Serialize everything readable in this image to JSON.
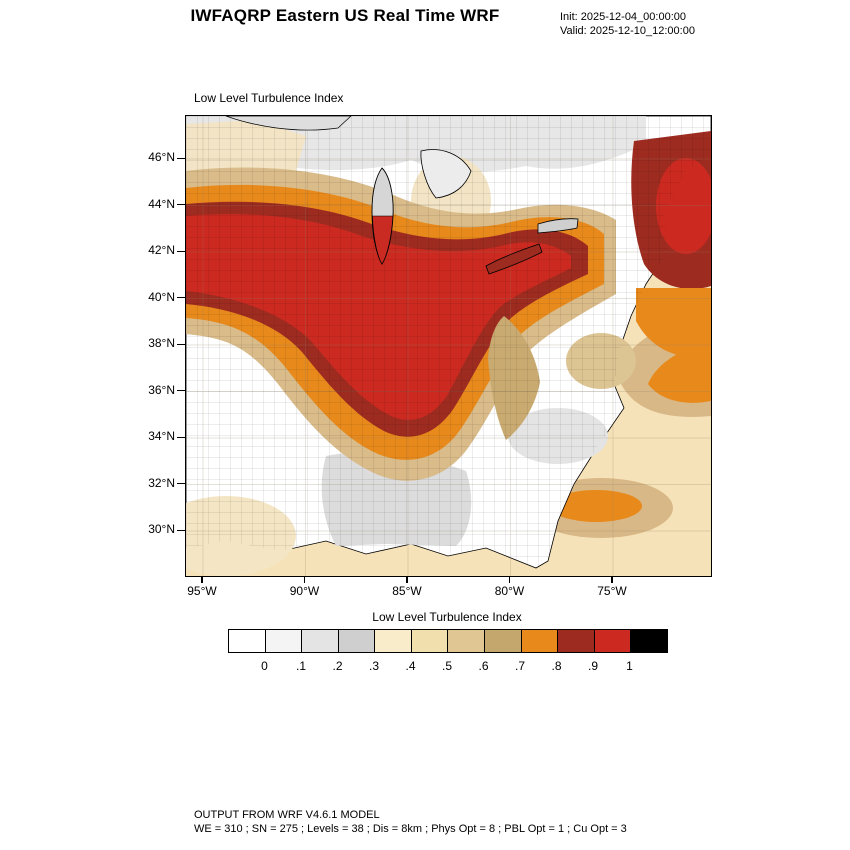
{
  "header": {
    "title": "IWFAQRP Eastern US Real Time WRF",
    "init_label": "Init: 2025-12-04_00:00:00",
    "valid_label": "Valid: 2025-12-10_12:00:00"
  },
  "map": {
    "title": "Low Level Turbulence Index",
    "lat_ticks": [
      "46°N",
      "44°N",
      "42°N",
      "40°N",
      "38°N",
      "36°N",
      "34°N",
      "32°N",
      "30°N"
    ],
    "lon_ticks": [
      "95°W",
      "90°W",
      "85°W",
      "80°W",
      "75°W"
    ]
  },
  "chart_data": {
    "type": "heatmap",
    "title": "Low Level Turbulence Index",
    "extent": {
      "lon_range": [
        "95°W",
        "75°W"
      ],
      "lat_range": [
        "30°N",
        "46°N"
      ]
    },
    "colorbar": {
      "title": "Low Level Turbulence Index",
      "tick_labels": [
        "0",
        ".1",
        ".2",
        ".3",
        ".4",
        ".5",
        ".6",
        ".7",
        ".8",
        ".9",
        "1"
      ],
      "colors": [
        "#ffffff",
        "#f4f4f4",
        "#e4e4e4",
        "#cfcfcf",
        "#f9ecca",
        "#f2dfae",
        "#dfc693",
        "#c3a76c",
        "#e8891c",
        "#9e2b20",
        "#cc2a21",
        "#000000"
      ],
      "range": [
        0,
        1
      ]
    },
    "map_colors": {
      "high_red": "#cc2a21",
      "very_high_darkred": "#9e2b20",
      "moderate_orange": "#e8891c",
      "low_tan": "#d9bc8a",
      "background_cream": "#f6e2b8",
      "minimal_gray": "#e7e7e7"
    },
    "description": "Filled-contour low level turbulence index over the eastern US; highest values (0.8-1.0, red/dark red) stretch from Iowa and southern Wisconsin across Illinois, Indiana, Ohio, Kentucky and Tennessee, with another maximum over interior New England; moderate values (orange/tan) ring the maximum and cover parts of the western Atlantic; low values (gray/white) over the upper Great Lakes, Gulf Coast and Southeast."
  },
  "footer": {
    "line1": "OUTPUT FROM WRF V4.6.1 MODEL",
    "line2": "WE = 310 ; SN = 275 ; Levels = 38 ; Dis = 8km ; Phys Opt = 8 ; PBL Opt = 1 ; Cu Opt = 3"
  }
}
